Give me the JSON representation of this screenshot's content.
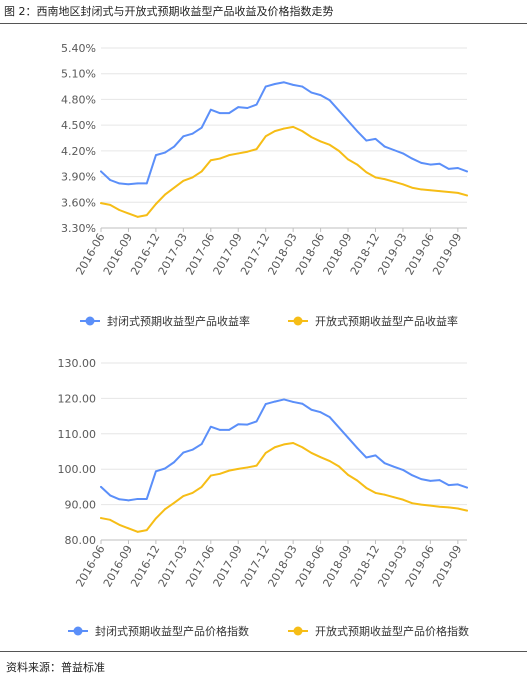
{
  "figure_title": "图 2：西南地区封闭式与开放式预期收益型产品收益及价格指数走势",
  "source": "资料来源：普益标准",
  "colors": {
    "closed": "#5b8ff9",
    "open": "#f6bd16",
    "grid": "#e6e6e6",
    "axis": "#bfbfbf",
    "text": "#595959"
  },
  "chart_data": [
    {
      "type": "line",
      "title": "",
      "xlabel": "",
      "ylabel": "",
      "ylim": [
        3.3,
        5.4
      ],
      "y_ticks": [
        "3.30%",
        "3.60%",
        "3.90%",
        "4.20%",
        "4.50%",
        "4.80%",
        "5.10%",
        "5.40%"
      ],
      "x_tick_labels": [
        "2016-06",
        "2016-09",
        "2016-12",
        "2017-03",
        "2017-06",
        "2017-09",
        "2017-12",
        "2018-03",
        "2018-06",
        "2018-09",
        "2018-12",
        "2019-03",
        "2019-06",
        "2019-09"
      ],
      "grid": true,
      "legend_position": "bottom",
      "x": [
        "2016-06",
        "2016-07",
        "2016-08",
        "2016-09",
        "2016-10",
        "2016-11",
        "2016-12",
        "2017-01",
        "2017-02",
        "2017-03",
        "2017-04",
        "2017-05",
        "2017-06",
        "2017-07",
        "2017-08",
        "2017-09",
        "2017-10",
        "2017-11",
        "2017-12",
        "2018-01",
        "2018-02",
        "2018-03",
        "2018-04",
        "2018-05",
        "2018-06",
        "2018-07",
        "2018-08",
        "2018-09",
        "2018-10",
        "2018-11",
        "2018-12",
        "2019-01",
        "2019-02",
        "2019-03",
        "2019-04",
        "2019-05",
        "2019-06",
        "2019-07",
        "2019-08",
        "2019-09",
        "2019-10"
      ],
      "series": [
        {
          "name": "封闭式预期收益型产品收益率",
          "color": "#5b8ff9",
          "values": [
            3.96,
            3.86,
            3.82,
            3.81,
            3.82,
            3.82,
            4.15,
            4.18,
            4.25,
            4.37,
            4.4,
            4.47,
            4.68,
            4.64,
            4.64,
            4.71,
            4.7,
            4.74,
            4.95,
            4.98,
            5.0,
            4.97,
            4.95,
            4.88,
            4.85,
            4.79,
            4.67,
            4.55,
            4.43,
            4.32,
            4.34,
            4.25,
            4.21,
            4.17,
            4.11,
            4.06,
            4.04,
            4.05,
            3.99,
            4.0,
            3.96
          ]
        },
        {
          "name": "开放式预期收益型产品收益率",
          "color": "#f6bd16",
          "values": [
            3.59,
            3.57,
            3.51,
            3.47,
            3.43,
            3.45,
            3.58,
            3.69,
            3.77,
            3.85,
            3.89,
            3.96,
            4.09,
            4.11,
            4.15,
            4.17,
            4.19,
            4.22,
            4.37,
            4.43,
            4.46,
            4.48,
            4.43,
            4.36,
            4.31,
            4.27,
            4.2,
            4.1,
            4.04,
            3.95,
            3.89,
            3.87,
            3.84,
            3.81,
            3.77,
            3.75,
            3.74,
            3.73,
            3.72,
            3.71,
            3.68
          ]
        }
      ]
    },
    {
      "type": "line",
      "title": "",
      "xlabel": "",
      "ylabel": "",
      "ylim": [
        80,
        130
      ],
      "y_ticks": [
        "80.00",
        "90.00",
        "100.00",
        "110.00",
        "120.00",
        "130.00"
      ],
      "x_tick_labels": [
        "2016-06",
        "2016-09",
        "2016-12",
        "2017-03",
        "2017-06",
        "2017-09",
        "2017-12",
        "2018-03",
        "2018-06",
        "2018-09",
        "2018-12",
        "2019-03",
        "2019-06",
        "2019-09"
      ],
      "grid": true,
      "legend_position": "bottom",
      "x": [
        "2016-06",
        "2016-07",
        "2016-08",
        "2016-09",
        "2016-10",
        "2016-11",
        "2016-12",
        "2017-01",
        "2017-02",
        "2017-03",
        "2017-04",
        "2017-05",
        "2017-06",
        "2017-07",
        "2017-08",
        "2017-09",
        "2017-10",
        "2017-11",
        "2017-12",
        "2018-01",
        "2018-02",
        "2018-03",
        "2018-04",
        "2018-05",
        "2018-06",
        "2018-07",
        "2018-08",
        "2018-09",
        "2018-10",
        "2018-11",
        "2018-12",
        "2019-01",
        "2019-02",
        "2019-03",
        "2019-04",
        "2019-05",
        "2019-06",
        "2019-07",
        "2019-08",
        "2019-09",
        "2019-10"
      ],
      "series": [
        {
          "name": "封闭式预期收益型产品价格指数",
          "color": "#5b8ff9",
          "values": [
            95.0,
            92.6,
            91.5,
            91.2,
            91.6,
            91.6,
            99.4,
            100.2,
            102.0,
            104.7,
            105.5,
            107.1,
            112.0,
            111.1,
            111.1,
            112.7,
            112.6,
            113.5,
            118.4,
            119.1,
            119.7,
            119.0,
            118.5,
            116.8,
            116.1,
            114.7,
            111.8,
            108.9,
            106.0,
            103.3,
            103.9,
            101.7,
            100.7,
            99.8,
            98.3,
            97.2,
            96.7,
            96.9,
            95.5,
            95.7,
            94.8
          ]
        },
        {
          "name": "开放式预期收益型产品价格指数",
          "color": "#f6bd16",
          "values": [
            86.2,
            85.7,
            84.3,
            83.3,
            82.3,
            82.8,
            86.1,
            88.7,
            90.5,
            92.4,
            93.3,
            95.0,
            98.2,
            98.7,
            99.6,
            100.1,
            100.5,
            101.0,
            104.6,
            106.2,
            107.0,
            107.4,
            106.2,
            104.6,
            103.4,
            102.3,
            100.8,
            98.4,
            96.8,
            94.7,
            93.3,
            92.8,
            92.1,
            91.4,
            90.4,
            90.0,
            89.7,
            89.4,
            89.2,
            88.9,
            88.3
          ]
        }
      ]
    }
  ]
}
